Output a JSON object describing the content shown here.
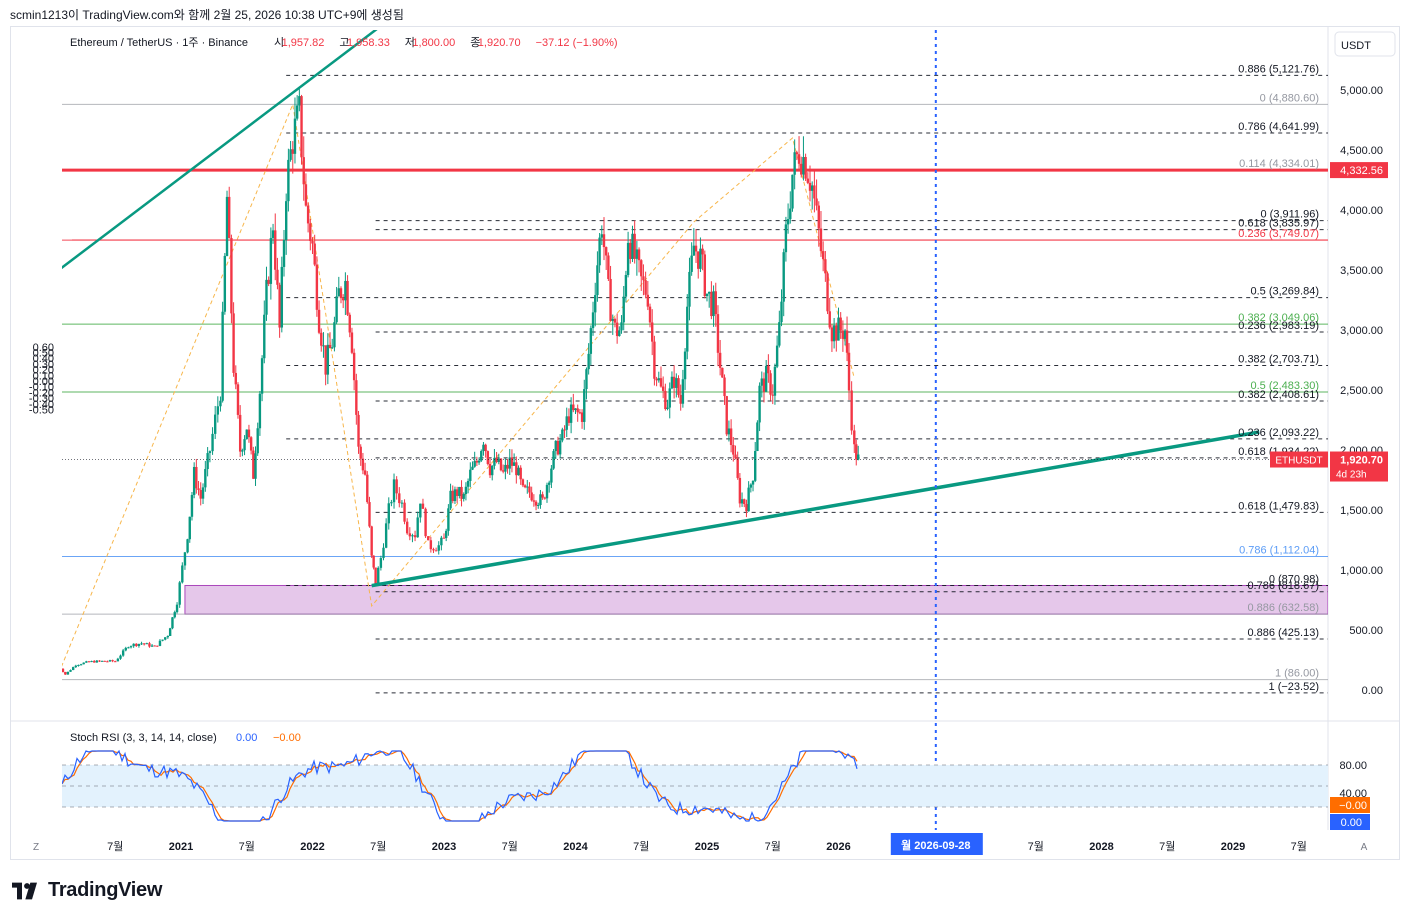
{
  "header": {
    "snapshot_line": "scmin1213이 TradingView.com와 함께 2월 25, 2026 10:38 UTC+9에 생성됨",
    "symbol_title": "Ethereum / TetherUS · 1주 · Binance",
    "ohlc": {
      "open_label": "시",
      "open": "1,957.82",
      "high_label": "고",
      "high": "1,958.33",
      "low_label": "저",
      "low": "1,800.00",
      "close_label": "종",
      "close": "1,920.70",
      "change": "−37.12 (−1.90%)"
    },
    "currency_button": "USDT"
  },
  "colors": {
    "up": "#089981",
    "down": "#f23645",
    "trendline": "#089981",
    "red_level": "#f23645",
    "fib_black": "#131722",
    "fib_green": "#4caf50",
    "fib_blue": "#5b9cf6",
    "fib_grey": "#9598a1",
    "zone_fill": "#e1bee7",
    "zone_border": "#9c27b0",
    "dotted_vline": "#2962ff",
    "fib_path": "#f7b64b",
    "stoch_k": "#2962ff",
    "stoch_d": "#ff6d00",
    "stoch_band": "#e3f2fd"
  },
  "chart_data": {
    "type": "candlestick",
    "symbol": "ETHUSDT",
    "timeframe": "1W",
    "price_axis": {
      "labels": [
        "5,000.00",
        "4,500.00",
        "4,000.00",
        "3,500.00",
        "3,000.00",
        "2,500.00",
        "2,000.00",
        "1,500.00",
        "1,000.00",
        "500.00",
        "0.00"
      ],
      "ylim": [
        -50,
        5250
      ]
    },
    "left_axis": {
      "labels": [
        "0.60",
        "0.50",
        "0.40",
        "0.30",
        "0.20",
        "0.10",
        "0.00",
        "-0.10",
        "-0.20",
        "-0.30",
        "-0.40",
        "-0.50"
      ],
      "values": [
        0.6,
        0.5,
        0.4,
        0.3,
        0.2,
        0.1,
        0.0,
        -0.1,
        -0.2,
        -0.3,
        -0.4,
        -0.5
      ]
    },
    "time_axis": {
      "labels": [
        "7월",
        "2021",
        "7월",
        "2022",
        "7월",
        "2023",
        "7월",
        "2024",
        "7월",
        "2025",
        "7월",
        "2026",
        "7월",
        "2028",
        "7월",
        "2029",
        "7월"
      ],
      "years": [
        2020.5,
        2021.0,
        2021.5,
        2022.0,
        2022.5,
        2023.0,
        2023.5,
        2024.0,
        2024.5,
        2025.0,
        2025.5,
        2026.0,
        2027.5,
        2028.0,
        2028.5,
        2029.0,
        2029.5
      ]
    },
    "price_path": [
      [
        2020.05,
        230
      ],
      [
        2020.12,
        130
      ],
      [
        2020.2,
        210
      ],
      [
        2020.3,
        235
      ],
      [
        2020.4,
        240
      ],
      [
        2020.5,
        240
      ],
      [
        2020.6,
        370
      ],
      [
        2020.7,
        390
      ],
      [
        2020.8,
        360
      ],
      [
        2020.9,
        460
      ],
      [
        2020.97,
        740
      ],
      [
        2021.05,
        1300
      ],
      [
        2021.1,
        1800
      ],
      [
        2021.15,
        1600
      ],
      [
        2021.22,
        2000
      ],
      [
        2021.3,
        2500
      ],
      [
        2021.35,
        4100
      ],
      [
        2021.4,
        2700
      ],
      [
        2021.45,
        2000
      ],
      [
        2021.5,
        2200
      ],
      [
        2021.55,
        1800
      ],
      [
        2021.6,
        2500
      ],
      [
        2021.65,
        3300
      ],
      [
        2021.7,
        3900
      ],
      [
        2021.75,
        3000
      ],
      [
        2021.8,
        4200
      ],
      [
        2021.85,
        4600
      ],
      [
        2021.9,
        4800
      ],
      [
        2021.95,
        4000
      ],
      [
        2022.0,
        3700
      ],
      [
        2022.05,
        3100
      ],
      [
        2022.1,
        2700
      ],
      [
        2022.15,
        2900
      ],
      [
        2022.2,
        3300
      ],
      [
        2022.25,
        3400
      ],
      [
        2022.3,
        2900
      ],
      [
        2022.35,
        2000
      ],
      [
        2022.4,
        1800
      ],
      [
        2022.45,
        1100
      ],
      [
        2022.48,
        900
      ],
      [
        2022.52,
        1100
      ],
      [
        2022.58,
        1500
      ],
      [
        2022.62,
        1700
      ],
      [
        2022.68,
        1550
      ],
      [
        2022.72,
        1350
      ],
      [
        2022.78,
        1300
      ],
      [
        2022.82,
        1600
      ],
      [
        2022.88,
        1200
      ],
      [
        2022.92,
        1200
      ],
      [
        2022.96,
        1200
      ],
      [
        2023.0,
        1250
      ],
      [
        2023.05,
        1600
      ],
      [
        2023.1,
        1650
      ],
      [
        2023.15,
        1600
      ],
      [
        2023.2,
        1800
      ],
      [
        2023.25,
        1900
      ],
      [
        2023.3,
        2100
      ],
      [
        2023.35,
        1850
      ],
      [
        2023.4,
        1900
      ],
      [
        2023.45,
        1800
      ],
      [
        2023.5,
        1900
      ],
      [
        2023.55,
        1850
      ],
      [
        2023.6,
        1650
      ],
      [
        2023.65,
        1650
      ],
      [
        2023.7,
        1600
      ],
      [
        2023.75,
        1570
      ],
      [
        2023.8,
        1800
      ],
      [
        2023.85,
        2000
      ],
      [
        2023.9,
        2100
      ],
      [
        2023.95,
        2300
      ],
      [
        2024.0,
        2300
      ],
      [
        2024.05,
        2300
      ],
      [
        2024.1,
        2800
      ],
      [
        2024.15,
        3400
      ],
      [
        2024.2,
        3900
      ],
      [
        2024.25,
        3300
      ],
      [
        2024.3,
        3000
      ],
      [
        2024.35,
        3000
      ],
      [
        2024.4,
        3800
      ],
      [
        2024.45,
        3600
      ],
      [
        2024.5,
        3400
      ],
      [
        2024.55,
        3300
      ],
      [
        2024.6,
        2700
      ],
      [
        2024.65,
        2500
      ],
      [
        2024.7,
        2400
      ],
      [
        2024.75,
        2600
      ],
      [
        2024.8,
        2400
      ],
      [
        2024.85,
        3200
      ],
      [
        2024.9,
        3700
      ],
      [
        2024.95,
        3600
      ],
      [
        2025.0,
        3300
      ],
      [
        2025.05,
        3200
      ],
      [
        2025.1,
        2700
      ],
      [
        2025.15,
        2200
      ],
      [
        2025.2,
        2000
      ],
      [
        2025.25,
        1600
      ],
      [
        2025.3,
        1550
      ],
      [
        2025.35,
        1800
      ],
      [
        2025.4,
        2500
      ],
      [
        2025.45,
        2600
      ],
      [
        2025.5,
        2500
      ],
      [
        2025.55,
        3000
      ],
      [
        2025.6,
        3800
      ],
      [
        2025.65,
        4300
      ],
      [
        2025.7,
        4500
      ],
      [
        2025.75,
        4400
      ],
      [
        2025.8,
        4200
      ],
      [
        2025.85,
        3800
      ],
      [
        2025.9,
        3400
      ],
      [
        2025.95,
        3000
      ],
      [
        2026.0,
        3000
      ],
      [
        2026.05,
        3000
      ],
      [
        2026.08,
        2500
      ],
      [
        2026.12,
        2000
      ],
      [
        2026.15,
        1920
      ]
    ],
    "current_price": 1920.7,
    "current_price_label": "1,920.70",
    "countdown": "4d 23h",
    "symbol_tag": "ETHUSDT",
    "red_level_label": "4,332.56",
    "red_level_value": 4332.56,
    "thin_red_level_value": 3750,
    "fib_levels_upper_labels": [
      {
        "label": "0.886 (5,121.76)",
        "value": 5121.76,
        "color": "black",
        "dash": true,
        "x0": 2021.8
      },
      {
        "label": "0 (4,880.60)",
        "value": 4880.6,
        "color": "grey",
        "dash": false,
        "x0": 2020.05
      },
      {
        "label": "0.786 (4,641.99)",
        "value": 4641.99,
        "color": "black",
        "dash": true,
        "x0": 2021.8
      },
      {
        "label": "0.114 (4,334.01)",
        "value": 4334.01,
        "color": "grey",
        "dash": false,
        "x0": 2020.05
      },
      {
        "label": "0 (3,911.96)",
        "value": 3911.96,
        "color": "black",
        "dash": true,
        "x0": 2022.48
      },
      {
        "label": "0.618 (3,835.97)",
        "value": 3835.97,
        "color": "black",
        "dash": true,
        "x0": 2022.48
      },
      {
        "label": "0.236 (3,749.07)",
        "value": 3749.07,
        "color": "red",
        "dash": false,
        "x0": 2020.05
      },
      {
        "label": "0.5 (3,269.84)",
        "value": 3269.84,
        "color": "black",
        "dash": true,
        "x0": 2021.8
      },
      {
        "label": "0.382 (3,049.06)",
        "value": 3049.06,
        "color": "green",
        "dash": false,
        "x0": 2020.05
      },
      {
        "label": "0.236 (2,983.19)",
        "value": 2983.19,
        "color": "black",
        "dash": true,
        "x0": 2022.48
      },
      {
        "label": "0.382 (2,703.71)",
        "value": 2703.71,
        "color": "black",
        "dash": true,
        "x0": 2021.8
      },
      {
        "label": "0.5 (2,483.30)",
        "value": 2483.3,
        "color": "green",
        "dash": false,
        "x0": 2020.05
      },
      {
        "label": "0.382 (2,408.61)",
        "value": 2408.61,
        "color": "black",
        "dash": true,
        "x0": 2022.48
      },
      {
        "label": "0.236 (2,093.22)",
        "value": 2093.22,
        "color": "black",
        "dash": true,
        "x0": 2021.8
      },
      {
        "label": "0.618 (1,934.22)",
        "value": 1934.22,
        "color": "black",
        "dash": true,
        "x0": 2022.48
      },
      {
        "label": "0.618 (1,479.83)",
        "value": 1479.83,
        "color": "black",
        "dash": true,
        "x0": 2022.48
      },
      {
        "label": "0.786 (1,112.04)",
        "value": 1112.04,
        "color": "blue",
        "dash": false,
        "x0": 2020.05
      },
      {
        "label": "0 (870.98)",
        "value": 870.98,
        "color": "black",
        "dash": true,
        "x0": 2021.8
      },
      {
        "label": "0.786 (818.67)",
        "value": 818.67,
        "color": "black",
        "dash": true,
        "x0": 2022.48
      },
      {
        "label": "0.886 (632.58)",
        "value": 632.58,
        "color": "grey",
        "dash": false,
        "x0": 2020.05
      },
      {
        "label": "0.886 (425.13)",
        "value": 425.13,
        "color": "black",
        "dash": true,
        "x0": 2022.48
      },
      {
        "label": "1 (86.00)",
        "value": 86.0,
        "color": "grey",
        "dash": false,
        "x0": 2020.05
      },
      {
        "label": "1 (−23.52)",
        "value": -23.52,
        "color": "black",
        "dash": true,
        "x0": 2022.48
      }
    ],
    "demand_zone": {
      "from": 632.58,
      "to": 870.98,
      "x_start": 2021.03
    },
    "trendlines": [
      {
        "from": [
          2019.95,
          3400
        ],
        "to": [
          2022.6,
          5600
        ]
      },
      {
        "from": [
          2022.45,
          870
        ],
        "to": [
          2029.2,
          2150
        ]
      }
    ],
    "stoch_rsi": {
      "title": "Stoch RSI (3, 3, 14, 14, close)",
      "k_value": "0.00",
      "d_value": "−0.00",
      "axis_labels": [
        "80.00",
        "40.00"
      ],
      "last_k_label": "0.00",
      "last_d_label": "−0.00",
      "band": [
        20,
        80
      ]
    },
    "vline_date": "월 2026-09-28",
    "vline_year": 2026.74
  },
  "corner_labels": {
    "left": "Z",
    "right": "A"
  },
  "branding": {
    "logo_text": "TradingView"
  }
}
